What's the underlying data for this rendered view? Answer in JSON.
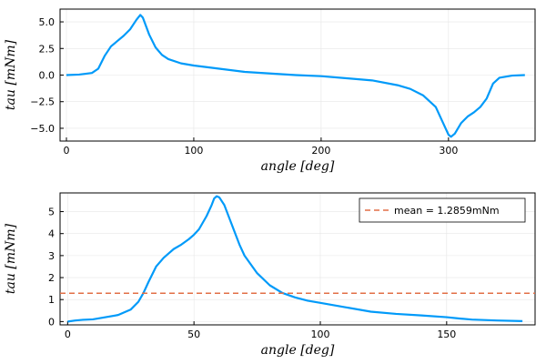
{
  "chart_data": [
    {
      "type": "line",
      "xlabel": "angle  [deg]",
      "ylabel": "tau  [mNm]",
      "xlim": [
        -5,
        368
      ],
      "ylim": [
        -6.2,
        6.2
      ],
      "xticks": [
        0,
        100,
        200,
        300
      ],
      "xtick_labels": [
        "0",
        "100",
        "200",
        "300"
      ],
      "yticks": [
        -5,
        -2.5,
        0,
        2.5,
        5
      ],
      "ytick_labels": [
        "−5.0",
        "−2.5",
        "0.0",
        "2.5",
        "5.0"
      ],
      "grid": true,
      "series": [
        {
          "color": "#009af9",
          "x": [
            0,
            10,
            20,
            25,
            30,
            35,
            40,
            45,
            50,
            55,
            58,
            60,
            65,
            70,
            75,
            80,
            90,
            100,
            120,
            140,
            160,
            180,
            200,
            220,
            240,
            260,
            270,
            280,
            290,
            295,
            300,
            302,
            305,
            310,
            315,
            320,
            325,
            330,
            335,
            340,
            350,
            360
          ],
          "y": [
            0.0,
            0.05,
            0.2,
            0.6,
            1.8,
            2.7,
            3.2,
            3.7,
            4.3,
            5.2,
            5.65,
            5.4,
            3.8,
            2.6,
            1.9,
            1.5,
            1.1,
            0.9,
            0.6,
            0.3,
            0.15,
            0.0,
            -0.1,
            -0.3,
            -0.5,
            -0.95,
            -1.3,
            -1.9,
            -3.0,
            -4.3,
            -5.6,
            -5.8,
            -5.5,
            -4.5,
            -3.9,
            -3.5,
            -3.0,
            -2.2,
            -0.8,
            -0.25,
            -0.05,
            0.0
          ]
        }
      ]
    },
    {
      "type": "line",
      "xlabel": "angle  [deg]",
      "ylabel": "tau  [mNm]",
      "xlim": [
        -3,
        185
      ],
      "ylim": [
        -0.15,
        5.85
      ],
      "xticks": [
        0,
        50,
        100,
        150
      ],
      "xtick_labels": [
        "0",
        "50",
        "100",
        "150"
      ],
      "yticks": [
        0,
        1,
        2,
        3,
        4,
        5
      ],
      "ytick_labels": [
        "0",
        "1",
        "2",
        "3",
        "4",
        "5"
      ],
      "grid": true,
      "legend_position": "top-right",
      "series": [
        {
          "color": "#009af9",
          "x": [
            0,
            3,
            6,
            10,
            15,
            20,
            25,
            28,
            30,
            32,
            35,
            38,
            40,
            42,
            45,
            48,
            50,
            52,
            55,
            57,
            58,
            59,
            60,
            62,
            65,
            68,
            70,
            75,
            80,
            85,
            90,
            95,
            100,
            110,
            120,
            130,
            140,
            150,
            155,
            160,
            170,
            180
          ],
          "y": [
            0.0,
            0.05,
            0.08,
            0.1,
            0.2,
            0.3,
            0.55,
            0.9,
            1.3,
            1.8,
            2.5,
            2.9,
            3.1,
            3.3,
            3.5,
            3.75,
            3.95,
            4.2,
            4.8,
            5.3,
            5.6,
            5.7,
            5.65,
            5.3,
            4.4,
            3.5,
            3.0,
            2.2,
            1.65,
            1.3,
            1.1,
            0.95,
            0.85,
            0.65,
            0.45,
            0.35,
            0.28,
            0.2,
            0.14,
            0.09,
            0.05,
            0.02
          ]
        },
        {
          "name": "mean = 1.2859mNm",
          "color": "#e26f46",
          "style": "dashed",
          "hline": 1.2859
        }
      ]
    }
  ]
}
